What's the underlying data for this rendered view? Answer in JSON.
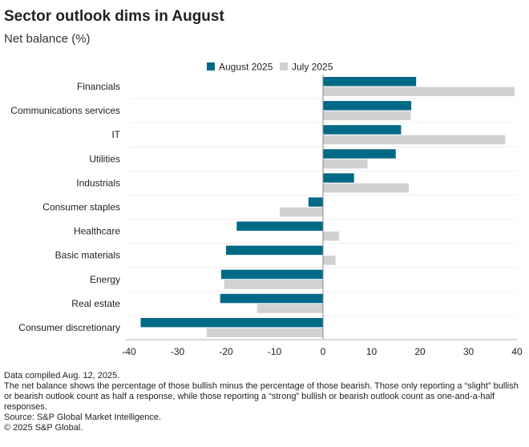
{
  "chart_data": {
    "type": "bar",
    "orientation": "horizontal",
    "title": "Sector outlook dims in August",
    "subtitle": "Net balance (%)",
    "categories": [
      "Financials",
      "Communications services",
      "IT",
      "Utilities",
      "Industrials",
      "Consumer staples",
      "Healthcare",
      "Basic materials",
      "Energy",
      "Real estate",
      "Consumer discretionary"
    ],
    "series": [
      {
        "name": "August 2025",
        "color": "#006a87",
        "values": [
          19.2,
          18.2,
          16.1,
          15.0,
          6.4,
          -3.0,
          -17.8,
          -20.0,
          -21.0,
          -21.2,
          -37.6
        ]
      },
      {
        "name": "July 2025",
        "color": "#d0d1d3",
        "values": [
          39.5,
          18.1,
          37.6,
          9.2,
          17.7,
          -8.9,
          3.3,
          2.6,
          -20.4,
          -13.6,
          -24.0
        ]
      }
    ],
    "xlim": [
      -40,
      40
    ],
    "xticks": [
      -40,
      -30,
      -20,
      -10,
      0,
      10,
      20,
      30,
      40
    ],
    "legend": "top",
    "grid": "horizontal separators"
  },
  "footnotes": [
    "Data compiled Aug. 12, 2025.",
    "The net balance shows the percentage of those bullish minus the percentage of those bearish. Those only reporting a “slight” bullish or bearish outlook count as half a response, while those reporting a “strong” bullish or bearish outlook count as one-and-a-half responses.",
    "Source: S&P Global Market Intelligence.",
    "© 2025 S&P Global."
  ]
}
